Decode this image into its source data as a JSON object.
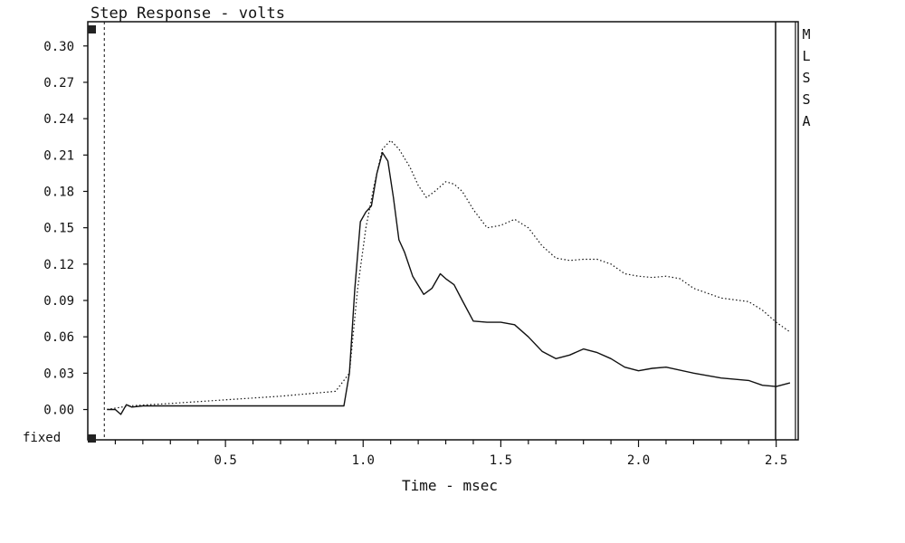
{
  "chart_data": {
    "type": "line",
    "title": "Step Response - volts",
    "xlabel": "Time - msec",
    "ylabel": "",
    "xlim": [
      0,
      2.58
    ],
    "ylim": [
      -0.025,
      0.32
    ],
    "x_ticks": [
      "0.5",
      "1.0",
      "1.5",
      "2.0",
      "2.5"
    ],
    "x_tick_values": [
      0.5,
      1.0,
      1.5,
      2.0,
      2.5
    ],
    "y_ticks": [
      "0.30",
      "0.27",
      "0.24",
      "0.21",
      "0.18",
      "0.15",
      "0.12",
      "0.09",
      "0.06",
      "0.03",
      "0.00"
    ],
    "y_tick_values": [
      0.3,
      0.27,
      0.24,
      0.21,
      0.18,
      0.15,
      0.12,
      0.09,
      0.06,
      0.03,
      0.0
    ],
    "scale_mode_label": "fixed",
    "side_letters": [
      "M",
      "L",
      "S",
      "S",
      "A"
    ],
    "cursor_left_x": 0.06,
    "cursor_right_x": 2.57,
    "grid": false,
    "series": [
      {
        "style": "solid",
        "x": [
          0.07,
          0.1,
          0.12,
          0.14,
          0.16,
          0.2,
          0.3,
          0.4,
          0.5,
          0.6,
          0.7,
          0.8,
          0.9,
          0.93,
          0.95,
          0.97,
          0.99,
          1.01,
          1.03,
          1.05,
          1.07,
          1.09,
          1.11,
          1.13,
          1.15,
          1.18,
          1.22,
          1.25,
          1.28,
          1.3,
          1.33,
          1.36,
          1.4,
          1.45,
          1.5,
          1.55,
          1.6,
          1.65,
          1.7,
          1.75,
          1.8,
          1.85,
          1.9,
          1.95,
          2.0,
          2.05,
          2.1,
          2.2,
          2.3,
          2.4,
          2.45,
          2.5,
          2.55
        ],
        "y": [
          0.0,
          0.0,
          -0.004,
          0.004,
          0.002,
          0.003,
          0.003,
          0.003,
          0.003,
          0.003,
          0.003,
          0.003,
          0.003,
          0.003,
          0.03,
          0.1,
          0.155,
          0.163,
          0.168,
          0.195,
          0.212,
          0.205,
          0.175,
          0.14,
          0.13,
          0.11,
          0.095,
          0.1,
          0.112,
          0.108,
          0.103,
          0.09,
          0.073,
          0.072,
          0.072,
          0.07,
          0.06,
          0.048,
          0.042,
          0.045,
          0.05,
          0.047,
          0.042,
          0.035,
          0.032,
          0.034,
          0.035,
          0.03,
          0.026,
          0.024,
          0.02,
          0.019,
          0.022
        ]
      },
      {
        "style": "dotted",
        "x": [
          0.07,
          0.15,
          0.3,
          0.5,
          0.7,
          0.9,
          0.95,
          0.98,
          1.01,
          1.04,
          1.07,
          1.1,
          1.13,
          1.17,
          1.2,
          1.23,
          1.26,
          1.3,
          1.33,
          1.36,
          1.4,
          1.45,
          1.5,
          1.55,
          1.6,
          1.65,
          1.7,
          1.75,
          1.8,
          1.85,
          1.9,
          1.95,
          2.0,
          2.05,
          2.1,
          2.15,
          2.2,
          2.3,
          2.4,
          2.45,
          2.5,
          2.55
        ],
        "y": [
          0.0,
          0.003,
          0.005,
          0.008,
          0.011,
          0.015,
          0.03,
          0.1,
          0.15,
          0.185,
          0.215,
          0.222,
          0.215,
          0.2,
          0.185,
          0.175,
          0.18,
          0.188,
          0.186,
          0.18,
          0.165,
          0.15,
          0.152,
          0.157,
          0.15,
          0.135,
          0.125,
          0.123,
          0.124,
          0.124,
          0.12,
          0.112,
          0.11,
          0.109,
          0.11,
          0.108,
          0.1,
          0.092,
          0.089,
          0.082,
          0.072,
          0.064
        ]
      }
    ]
  }
}
